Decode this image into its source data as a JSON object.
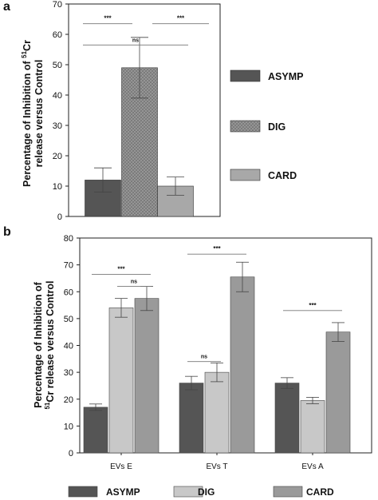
{
  "panels": [
    {
      "letter": "a",
      "ylabel_line1": "Percentage of Inhibition  of ",
      "ylabel_sup": "51",
      "ylabel_suffix": "Cr",
      "ylabel_line2": "release versus Control",
      "legend_entries": [
        "ASYMP",
        "DIG",
        "CARD"
      ]
    },
    {
      "letter": "b",
      "ylabel_line1": "Percentage of Inhibition  of ",
      "ylabel_sup": "51",
      "ylabel_suffix": "Cr release versus Control",
      "legend_entries": [
        "ASYMP",
        "DIG",
        "CARD"
      ]
    }
  ],
  "chart_data": [
    {
      "type": "bar",
      "panel": "a",
      "categories": [
        "ASYMP",
        "DIG",
        "CARD"
      ],
      "values": [
        12,
        49,
        10
      ],
      "errors": [
        4,
        10,
        3
      ],
      "ylim": [
        0,
        70
      ],
      "yticks": [
        0,
        10,
        20,
        30,
        40,
        50,
        60,
        70
      ],
      "grid": false,
      "legend_position": "right",
      "colors": [
        "#555555",
        "#8a8a8a",
        "#a8a8a8"
      ],
      "significance": [
        {
          "from": 0,
          "to": 1,
          "label": "***",
          "y": 63.5
        },
        {
          "from": 0,
          "to": 2,
          "label": "ns",
          "y": 56.5
        },
        {
          "from": 1,
          "to": 2,
          "label": "***",
          "y": 63.5
        }
      ]
    },
    {
      "type": "bar",
      "panel": "b",
      "categories": [
        "EVs E",
        "EVs T",
        "EVs A"
      ],
      "series": [
        {
          "name": "ASYMP",
          "values": [
            17,
            26,
            26
          ],
          "errors": [
            1.2,
            2.5,
            2.0
          ],
          "color": "#555555"
        },
        {
          "name": "DIG",
          "values": [
            54,
            30,
            19.5
          ],
          "errors": [
            3.5,
            3.5,
            1.2
          ],
          "color": "#c8c8c8"
        },
        {
          "name": "CARD",
          "values": [
            57.5,
            65.5,
            45
          ],
          "errors": [
            4.5,
            5.5,
            3.5
          ],
          "color": "#9a9a9a"
        }
      ],
      "ylim": [
        0,
        80
      ],
      "yticks": [
        0,
        10,
        20,
        30,
        40,
        50,
        60,
        70,
        80
      ],
      "grid": false,
      "legend_position": "bottom",
      "significance": [
        {
          "group": 0,
          "from": 0,
          "to": 2,
          "label": "***",
          "y": 66.5
        },
        {
          "group": 0,
          "from": 1,
          "to": 2,
          "label": "ns",
          "y": 62
        },
        {
          "group": 1,
          "from": 0,
          "to": 2,
          "label": "***",
          "y": 74
        },
        {
          "group": 1,
          "from": 0,
          "to": 1,
          "label": "ns",
          "y": 34
        },
        {
          "group": 2,
          "from": 0,
          "to": 2,
          "label": "***",
          "y": 53
        }
      ]
    }
  ]
}
